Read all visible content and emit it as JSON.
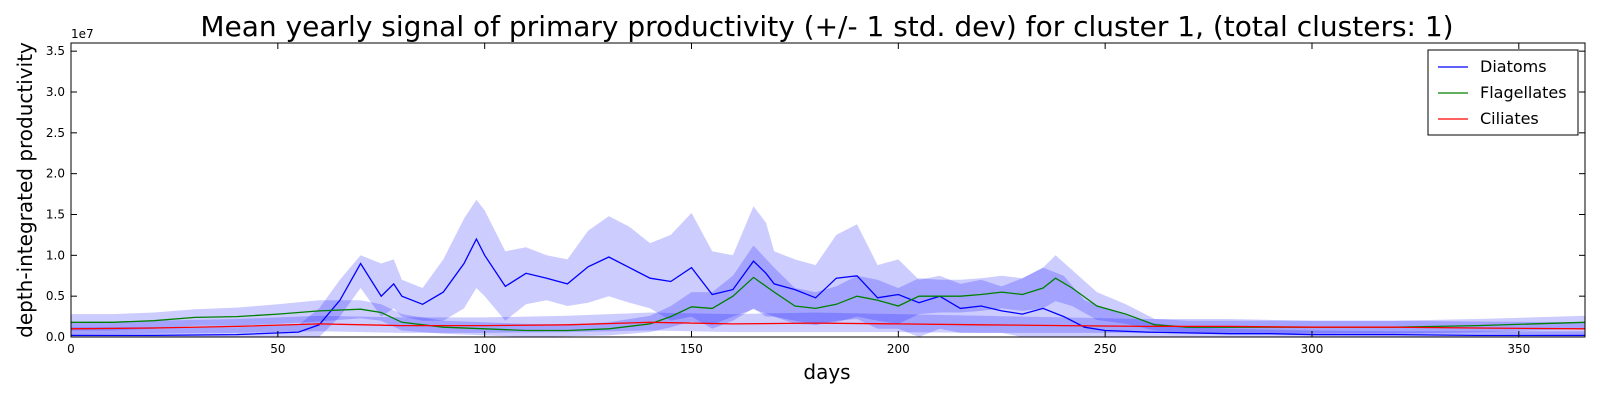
{
  "chart_data": {
    "type": "line",
    "title": "Mean yearly signal of primary productivity (+/- 1 std. dev) for cluster 1, (total clusters: 1)",
    "xlabel": "days",
    "ylabel": "depth-integrated productivity",
    "y_multiplier_label": "1e7",
    "xlim": [
      0,
      366
    ],
    "ylim": [
      0,
      3.6
    ],
    "xticks": [
      0,
      50,
      100,
      150,
      200,
      250,
      300,
      350
    ],
    "yticks": [
      0.0,
      0.5,
      1.0,
      1.5,
      2.0,
      2.5,
      3.0,
      3.5
    ],
    "ytick_labels": [
      "0.0",
      "0.5",
      "1.0",
      "1.5",
      "2.0",
      "2.5",
      "3.0",
      "3.5"
    ],
    "grid": false,
    "legend_position": "top-right",
    "series": [
      {
        "name": "Diatoms",
        "color": "#0000ff",
        "band_color": "#0000ff",
        "x": [
          0,
          20,
          40,
          55,
          60,
          65,
          70,
          75,
          78,
          80,
          85,
          90,
          95,
          98,
          100,
          105,
          110,
          115,
          120,
          125,
          130,
          135,
          140,
          145,
          150,
          155,
          160,
          165,
          168,
          170,
          175,
          180,
          185,
          190,
          195,
          200,
          205,
          210,
          215,
          220,
          225,
          230,
          235,
          240,
          245,
          250,
          260,
          270,
          280,
          290,
          300,
          320,
          340,
          366
        ],
        "values": [
          0.02,
          0.02,
          0.03,
          0.06,
          0.15,
          0.45,
          0.9,
          0.5,
          0.65,
          0.5,
          0.4,
          0.55,
          0.9,
          1.2,
          1.0,
          0.62,
          0.78,
          0.72,
          0.65,
          0.86,
          0.98,
          0.85,
          0.72,
          0.68,
          0.85,
          0.52,
          0.58,
          0.93,
          0.78,
          0.65,
          0.58,
          0.48,
          0.72,
          0.75,
          0.48,
          0.52,
          0.42,
          0.5,
          0.35,
          0.38,
          0.32,
          0.28,
          0.35,
          0.25,
          0.12,
          0.08,
          0.06,
          0.05,
          0.04,
          0.04,
          0.03,
          0.03,
          0.02,
          0.02
        ],
        "upper": [
          0.12,
          0.12,
          0.12,
          0.15,
          0.35,
          0.7,
          1.0,
          0.9,
          0.95,
          0.7,
          0.6,
          0.95,
          1.45,
          1.68,
          1.55,
          1.05,
          1.1,
          1.0,
          0.95,
          1.3,
          1.48,
          1.35,
          1.15,
          1.25,
          1.52,
          1.05,
          1.0,
          1.6,
          1.4,
          1.05,
          0.95,
          0.88,
          1.25,
          1.38,
          0.88,
          0.95,
          0.7,
          0.75,
          0.65,
          0.7,
          0.62,
          0.72,
          0.85,
          0.75,
          0.45,
          0.35,
          0.18,
          0.12,
          0.1,
          0.09,
          0.08,
          0.07,
          0.07,
          0.07
        ],
        "lower": [
          0.0,
          0.0,
          0.0,
          0.0,
          0.0,
          0.25,
          0.6,
          0.25,
          0.35,
          0.25,
          0.2,
          0.2,
          0.35,
          0.6,
          0.5,
          0.2,
          0.4,
          0.45,
          0.38,
          0.42,
          0.5,
          0.42,
          0.35,
          0.2,
          0.25,
          0.1,
          0.2,
          0.35,
          0.25,
          0.25,
          0.2,
          0.15,
          0.2,
          0.22,
          0.1,
          0.1,
          0.0,
          0.1,
          0.05,
          0.05,
          0.05,
          0.0,
          0.0,
          0.0,
          0.0,
          0.0,
          0.0,
          0.0,
          0.0,
          0.0,
          0.0,
          0.0,
          0.0,
          0.0
        ]
      },
      {
        "name": "Flagellates",
        "color": "#008000",
        "band_color": "#0000ff",
        "x": [
          0,
          10,
          20,
          30,
          40,
          50,
          60,
          70,
          75,
          80,
          90,
          100,
          110,
          120,
          130,
          140,
          145,
          150,
          155,
          160,
          165,
          170,
          175,
          180,
          185,
          190,
          195,
          200,
          205,
          210,
          215,
          220,
          225,
          230,
          235,
          238,
          242,
          248,
          255,
          262,
          270,
          280,
          290,
          300,
          320,
          340,
          366
        ],
        "values": [
          0.18,
          0.18,
          0.2,
          0.24,
          0.25,
          0.28,
          0.32,
          0.34,
          0.3,
          0.18,
          0.12,
          0.1,
          0.08,
          0.08,
          0.1,
          0.16,
          0.25,
          0.37,
          0.35,
          0.5,
          0.73,
          0.55,
          0.38,
          0.35,
          0.4,
          0.5,
          0.45,
          0.38,
          0.5,
          0.5,
          0.5,
          0.52,
          0.55,
          0.52,
          0.6,
          0.72,
          0.6,
          0.38,
          0.28,
          0.15,
          0.12,
          0.12,
          0.12,
          0.12,
          0.12,
          0.14,
          0.18
        ],
        "upper": [
          0.28,
          0.28,
          0.3,
          0.34,
          0.36,
          0.4,
          0.45,
          0.45,
          0.4,
          0.28,
          0.2,
          0.18,
          0.16,
          0.15,
          0.18,
          0.26,
          0.38,
          0.55,
          0.55,
          0.75,
          1.12,
          0.85,
          0.6,
          0.55,
          0.62,
          0.75,
          0.7,
          0.6,
          0.72,
          0.7,
          0.7,
          0.72,
          0.75,
          0.72,
          0.85,
          1.0,
          0.82,
          0.55,
          0.4,
          0.22,
          0.2,
          0.2,
          0.2,
          0.2,
          0.2,
          0.22,
          0.26
        ],
        "lower": [
          0.08,
          0.08,
          0.1,
          0.14,
          0.14,
          0.16,
          0.19,
          0.23,
          0.2,
          0.08,
          0.04,
          0.02,
          0.0,
          0.01,
          0.02,
          0.06,
          0.12,
          0.19,
          0.15,
          0.25,
          0.34,
          0.25,
          0.16,
          0.15,
          0.18,
          0.25,
          0.2,
          0.16,
          0.28,
          0.3,
          0.3,
          0.32,
          0.35,
          0.32,
          0.35,
          0.44,
          0.38,
          0.21,
          0.16,
          0.08,
          0.04,
          0.04,
          0.04,
          0.04,
          0.04,
          0.06,
          0.1
        ]
      },
      {
        "name": "Ciliates",
        "color": "#ff0000",
        "band_color": "#0000ff",
        "x": [
          0,
          20,
          40,
          60,
          80,
          100,
          120,
          140,
          160,
          180,
          200,
          220,
          240,
          260,
          280,
          300,
          320,
          340,
          366
        ],
        "values": [
          0.1,
          0.11,
          0.13,
          0.16,
          0.14,
          0.14,
          0.15,
          0.18,
          0.16,
          0.17,
          0.16,
          0.15,
          0.14,
          0.13,
          0.13,
          0.12,
          0.12,
          0.11,
          0.1
        ],
        "upper": [
          0.18,
          0.2,
          0.22,
          0.26,
          0.24,
          0.24,
          0.26,
          0.3,
          0.28,
          0.3,
          0.28,
          0.26,
          0.24,
          0.22,
          0.22,
          0.2,
          0.2,
          0.19,
          0.18
        ],
        "lower": [
          0.03,
          0.04,
          0.05,
          0.07,
          0.05,
          0.05,
          0.06,
          0.08,
          0.06,
          0.06,
          0.06,
          0.05,
          0.05,
          0.05,
          0.05,
          0.04,
          0.04,
          0.04,
          0.03
        ]
      }
    ]
  }
}
